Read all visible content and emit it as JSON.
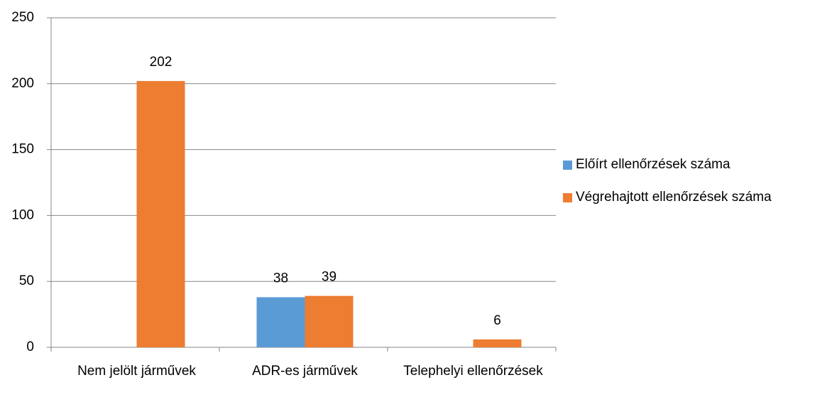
{
  "chart_data": {
    "type": "bar",
    "categories": [
      "Nem jelölt járművek",
      "ADR-es járművek",
      "Telephelyi ellenőrzések"
    ],
    "series": [
      {
        "name": "Előírt ellenőrzések száma",
        "color": "#5b9bd5",
        "values": [
          null,
          38,
          null
        ]
      },
      {
        "name": "Végrehajtott ellenőrzések száma",
        "color": "#ed7d31",
        "values": [
          202,
          39,
          6
        ]
      }
    ],
    "ylim": [
      0,
      250
    ],
    "yticks": [
      0,
      50,
      100,
      150,
      200,
      250
    ],
    "grid": true,
    "legend": "right"
  }
}
